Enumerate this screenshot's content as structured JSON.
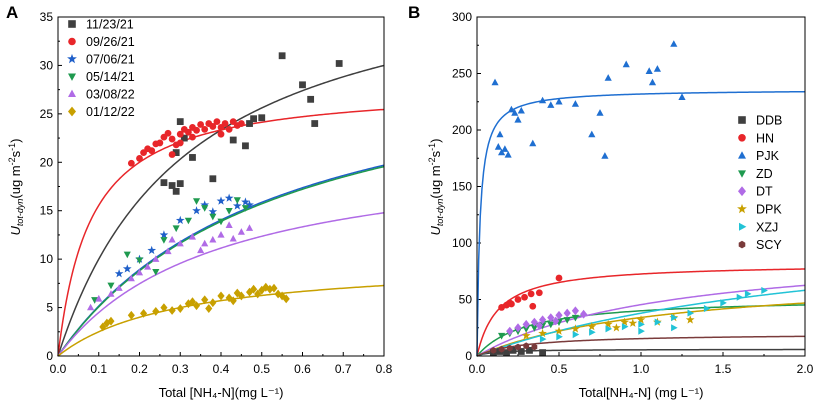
{
  "chart_data": [
    {
      "type": "scatter",
      "panel_label": "A",
      "xlabel": "Total [NH₄-N](mg L⁻¹)",
      "ylabel": "U_tot-dyn(ug m⁻²s⁻¹)",
      "xlim": [
        0,
        0.8
      ],
      "ylim": [
        0,
        35
      ],
      "xticks": [
        "0.0",
        "0.1",
        "0.2",
        "0.3",
        "0.4",
        "0.5",
        "0.6",
        "0.7",
        "0.8"
      ],
      "yticks": [
        "0",
        "5",
        "10",
        "15",
        "20",
        "25",
        "30",
        "35"
      ],
      "legend_position": "top-left",
      "series": [
        {
          "name": "11/23/21",
          "color": "#3f3f3f",
          "marker": "square",
          "fit": {
            "vmax": 42,
            "km": 0.32
          },
          "points": [
            [
              0.26,
              17.9
            ],
            [
              0.28,
              17.6
            ],
            [
              0.29,
              17.0
            ],
            [
              0.3,
              17.8
            ],
            [
              0.29,
              21.0
            ],
            [
              0.3,
              24.2
            ],
            [
              0.31,
              22.5
            ],
            [
              0.33,
              20.5
            ],
            [
              0.38,
              18.3
            ],
            [
              0.43,
              22.3
            ],
            [
              0.46,
              21.7
            ],
            [
              0.47,
              24.0
            ],
            [
              0.48,
              24.5
            ],
            [
              0.5,
              24.6
            ],
            [
              0.55,
              31.0
            ],
            [
              0.6,
              28.0
            ],
            [
              0.62,
              26.5
            ],
            [
              0.63,
              24.0
            ],
            [
              0.69,
              30.2
            ]
          ]
        },
        {
          "name": "09/26/21",
          "color": "#e8262a",
          "marker": "circle",
          "fit": {
            "vmax": 28,
            "km": 0.08
          },
          "points": [
            [
              0.18,
              19.9
            ],
            [
              0.2,
              20.4
            ],
            [
              0.21,
              21.0
            ],
            [
              0.22,
              21.4
            ],
            [
              0.23,
              21.2
            ],
            [
              0.24,
              21.9
            ],
            [
              0.25,
              22.0
            ],
            [
              0.26,
              22.6
            ],
            [
              0.27,
              23.0
            ],
            [
              0.28,
              22.4
            ],
            [
              0.29,
              21.8
            ],
            [
              0.3,
              22.9
            ],
            [
              0.31,
              23.4
            ],
            [
              0.32,
              23.1
            ],
            [
              0.33,
              23.6
            ],
            [
              0.34,
              23.3
            ],
            [
              0.35,
              23.9
            ],
            [
              0.36,
              23.4
            ],
            [
              0.37,
              24.0
            ],
            [
              0.38,
              23.7
            ],
            [
              0.39,
              24.2
            ],
            [
              0.4,
              23.6
            ],
            [
              0.41,
              24.0
            ],
            [
              0.42,
              23.4
            ],
            [
              0.43,
              24.2
            ],
            [
              0.44,
              23.8
            ],
            [
              0.45,
              24.0
            ],
            [
              0.28,
              20.8
            ],
            [
              0.3,
              22.0
            ],
            [
              0.33,
              22.6
            ],
            [
              0.4,
              22.9
            ]
          ]
        },
        {
          "name": "07/06/21",
          "color": "#1f5fc9",
          "marker": "star",
          "fit": {
            "vmax": 33,
            "km": 0.54
          },
          "points": [
            [
              0.15,
              8.5
            ],
            [
              0.17,
              9.0
            ],
            [
              0.2,
              10.0
            ],
            [
              0.23,
              10.9
            ],
            [
              0.26,
              12.5
            ],
            [
              0.3,
              14.0
            ],
            [
              0.34,
              15.0
            ],
            [
              0.36,
              15.6
            ],
            [
              0.38,
              14.9
            ],
            [
              0.4,
              16.0
            ],
            [
              0.42,
              16.3
            ],
            [
              0.44,
              15.5
            ],
            [
              0.46,
              15.9
            ],
            [
              0.47,
              15.6
            ]
          ]
        },
        {
          "name": "05/14/21",
          "color": "#1f9a4f",
          "marker": "triangle-down",
          "fit": {
            "vmax": 33,
            "km": 0.55
          },
          "points": [
            [
              0.09,
              5.8
            ],
            [
              0.13,
              7.3
            ],
            [
              0.17,
              10.5
            ],
            [
              0.2,
              9.9
            ],
            [
              0.24,
              8.7
            ],
            [
              0.26,
              12.0
            ],
            [
              0.29,
              13.2
            ],
            [
              0.32,
              14.0
            ],
            [
              0.34,
              16.0
            ],
            [
              0.36,
              15.3
            ],
            [
              0.38,
              14.4
            ],
            [
              0.4,
              13.9
            ],
            [
              0.42,
              15.0
            ],
            [
              0.44,
              16.1
            ],
            [
              0.46,
              15.3
            ]
          ]
        },
        {
          "name": "03/08/22",
          "color": "#b06be6",
          "marker": "triangle",
          "fit": {
            "vmax": 22,
            "km": 0.39
          },
          "points": [
            [
              0.08,
              5.0
            ],
            [
              0.1,
              5.9
            ],
            [
              0.13,
              6.4
            ],
            [
              0.15,
              7.0
            ],
            [
              0.18,
              8.0
            ],
            [
              0.2,
              8.6
            ],
            [
              0.22,
              9.2
            ],
            [
              0.24,
              10.0
            ],
            [
              0.27,
              10.8
            ],
            [
              0.3,
              11.6
            ],
            [
              0.33,
              12.3
            ],
            [
              0.36,
              11.6
            ],
            [
              0.38,
              12.0
            ],
            [
              0.4,
              12.5
            ],
            [
              0.43,
              12.1
            ],
            [
              0.45,
              12.8
            ],
            [
              0.47,
              13.2
            ],
            [
              0.35,
              10.9
            ],
            [
              0.28,
              12.0
            ],
            [
              0.42,
              13.5
            ]
          ]
        },
        {
          "name": "01/12/22",
          "color": "#c8a000",
          "marker": "diamond",
          "fit": {
            "vmax": 10,
            "km": 0.3
          },
          "points": [
            [
              0.11,
              3.0
            ],
            [
              0.12,
              3.4
            ],
            [
              0.13,
              3.6
            ],
            [
              0.18,
              4.2
            ],
            [
              0.21,
              4.4
            ],
            [
              0.24,
              4.6
            ],
            [
              0.26,
              5.0
            ],
            [
              0.28,
              4.7
            ],
            [
              0.3,
              4.9
            ],
            [
              0.32,
              5.4
            ],
            [
              0.34,
              5.2
            ],
            [
              0.36,
              5.8
            ],
            [
              0.38,
              5.5
            ],
            [
              0.4,
              6.2
            ],
            [
              0.42,
              6.0
            ],
            [
              0.44,
              6.5
            ],
            [
              0.45,
              6.2
            ],
            [
              0.47,
              6.6
            ],
            [
              0.48,
              6.9
            ],
            [
              0.49,
              6.4
            ],
            [
              0.5,
              6.8
            ],
            [
              0.51,
              7.1
            ],
            [
              0.52,
              6.9
            ],
            [
              0.53,
              7.0
            ],
            [
              0.54,
              6.4
            ],
            [
              0.55,
              6.2
            ],
            [
              0.56,
              5.9
            ],
            [
              0.43,
              5.7
            ],
            [
              0.37,
              4.9
            ],
            [
              0.33,
              5.6
            ]
          ]
        }
      ]
    },
    {
      "type": "scatter",
      "panel_label": "B",
      "xlabel": "Total[NH₄-N] (mg L⁻¹)",
      "ylabel": "U_tot-dyn(ug m⁻²s⁻¹)",
      "xlim": [
        0,
        2.0
      ],
      "ylim": [
        0,
        300
      ],
      "xticks": [
        "0.0",
        "0.5",
        "1.0",
        "1.5",
        "2.0"
      ],
      "yticks": [
        "0",
        "50",
        "100",
        "150",
        "200",
        "250",
        "300"
      ],
      "legend_position": "right",
      "series": [
        {
          "name": "DDB",
          "color": "#3f3f3f",
          "marker": "square",
          "fit": {
            "vmax": 6,
            "km": 0.1
          },
          "points": [
            [
              0.1,
              3
            ],
            [
              0.14,
              4
            ],
            [
              0.18,
              3
            ],
            [
              0.22,
              5
            ],
            [
              0.27,
              4
            ],
            [
              0.32,
              5
            ],
            [
              0.4,
              3
            ]
          ]
        },
        {
          "name": "HN",
          "color": "#e8262a",
          "marker": "circle",
          "fit": {
            "vmax": 82,
            "km": 0.13
          },
          "points": [
            [
              0.15,
              43
            ],
            [
              0.18,
              45
            ],
            [
              0.21,
              46
            ],
            [
              0.25,
              50
            ],
            [
              0.29,
              52
            ],
            [
              0.33,
              55
            ],
            [
              0.38,
              56
            ],
            [
              0.5,
              69
            ],
            [
              0.2,
              47
            ],
            [
              0.34,
              44
            ]
          ]
        },
        {
          "name": "PJK",
          "color": "#1f6fd1",
          "marker": "triangle",
          "fit": {
            "vmax": 236,
            "km": 0.018
          },
          "points": [
            [
              0.11,
              242
            ],
            [
              0.13,
              185
            ],
            [
              0.14,
              196
            ],
            [
              0.15,
              180
            ],
            [
              0.17,
              183
            ],
            [
              0.19,
              178
            ],
            [
              0.21,
              218
            ],
            [
              0.23,
              215
            ],
            [
              0.25,
              209
            ],
            [
              0.27,
              217
            ],
            [
              0.34,
              188
            ],
            [
              0.4,
              226
            ],
            [
              0.45,
              222
            ],
            [
              0.5,
              225
            ],
            [
              0.6,
              223
            ],
            [
              0.7,
              196
            ],
            [
              0.75,
              215
            ],
            [
              0.78,
              177
            ],
            [
              0.8,
              246
            ],
            [
              0.91,
              258
            ],
            [
              1.05,
              252
            ],
            [
              1.07,
              242
            ],
            [
              1.1,
              254
            ],
            [
              1.2,
              276
            ],
            [
              1.25,
              229
            ]
          ]
        },
        {
          "name": "ZD",
          "color": "#1f9a4f",
          "marker": "triangle-down",
          "fit": {
            "vmax": 52,
            "km": 0.3
          },
          "points": [
            [
              0.15,
              18
            ],
            [
              0.2,
              20
            ],
            [
              0.25,
              22
            ],
            [
              0.3,
              24
            ],
            [
              0.35,
              25
            ],
            [
              0.4,
              27
            ],
            [
              0.45,
              28
            ],
            [
              0.5,
              30
            ],
            [
              0.55,
              32
            ],
            [
              0.6,
              34
            ]
          ]
        },
        {
          "name": "DT",
          "color": "#b06be6",
          "marker": "diamond",
          "fit": {
            "vmax": 100,
            "km": 1.2
          },
          "points": [
            [
              0.2,
              22
            ],
            [
              0.25,
              25
            ],
            [
              0.3,
              28
            ],
            [
              0.35,
              30
            ],
            [
              0.4,
              32
            ],
            [
              0.45,
              34
            ],
            [
              0.5,
              36
            ],
            [
              0.55,
              38
            ],
            [
              0.6,
              40
            ],
            [
              0.65,
              37
            ],
            [
              0.38,
              27
            ],
            [
              0.48,
              31
            ]
          ]
        },
        {
          "name": "DPK",
          "color": "#c8a000",
          "marker": "star",
          "fit": {
            "vmax": 75,
            "km": 1.2
          },
          "points": [
            [
              0.3,
              18
            ],
            [
              0.4,
              20
            ],
            [
              0.5,
              22
            ],
            [
              0.6,
              24
            ],
            [
              0.7,
              26
            ],
            [
              0.8,
              28
            ],
            [
              0.9,
              30
            ],
            [
              1.0,
              32
            ],
            [
              1.1,
              30
            ],
            [
              1.2,
              34
            ],
            [
              1.3,
              32
            ],
            [
              0.85,
              25
            ],
            [
              0.95,
              29
            ]
          ]
        },
        {
          "name": "XZJ",
          "color": "#22c3d6",
          "marker": "triangle-right",
          "fit": {
            "vmax": 125,
            "km": 2.3
          },
          "points": [
            [
              0.4,
              15
            ],
            [
              0.5,
              17
            ],
            [
              0.6,
              19
            ],
            [
              0.7,
              21
            ],
            [
              0.8,
              24
            ],
            [
              0.9,
              26
            ],
            [
              1.0,
              28
            ],
            [
              1.1,
              30
            ],
            [
              1.2,
              34
            ],
            [
              1.3,
              38
            ],
            [
              1.4,
              42
            ],
            [
              1.5,
              47
            ],
            [
              1.6,
              52
            ],
            [
              1.65,
              55
            ],
            [
              1.75,
              58
            ],
            [
              1.2,
              25
            ],
            [
              1.0,
              22
            ]
          ]
        },
        {
          "name": "SCY",
          "color": "#7a3b3b",
          "marker": "hexagon",
          "fit": {
            "vmax": 20,
            "km": 0.3
          },
          "points": [
            [
              0.1,
              5
            ],
            [
              0.15,
              6
            ],
            [
              0.2,
              7
            ],
            [
              0.25,
              8
            ],
            [
              0.3,
              9
            ],
            [
              0.35,
              8
            ]
          ]
        }
      ]
    }
  ]
}
